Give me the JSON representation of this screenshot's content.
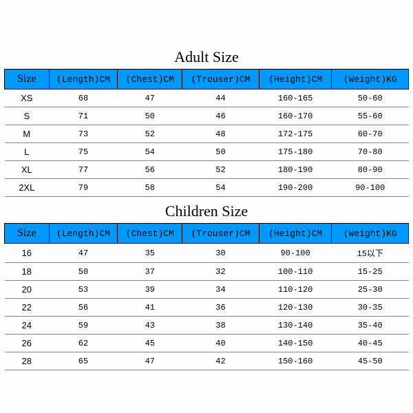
{
  "header_bg": "#0099ff",
  "adult": {
    "title": "Adult Size",
    "columns": [
      "Size",
      "(Length)CM",
      "(Chest)CM",
      "(Trouser)CM",
      "(Height)CM",
      "(Weight)KG"
    ],
    "rows": [
      [
        "XS",
        "68",
        "47",
        "44",
        "160-165",
        "50-60"
      ],
      [
        "S",
        "71",
        "50",
        "46",
        "160-170",
        "55-60"
      ],
      [
        "M",
        "73",
        "52",
        "48",
        "172-175",
        "60-70"
      ],
      [
        "L",
        "75",
        "54",
        "50",
        "175-180",
        "70-80"
      ],
      [
        "XL",
        "77",
        "56",
        "52",
        "180-190",
        "80-90"
      ],
      [
        "2XL",
        "79",
        "58",
        "54",
        "190-200",
        "90-100"
      ]
    ]
  },
  "children": {
    "title": "Children Size",
    "columns": [
      "Size",
      "(Length)CM",
      "(Chest)CM",
      "(Trouser)CM",
      "(Height)CM",
      "(Weight)KG"
    ],
    "rows": [
      [
        "16",
        "47",
        "35",
        "30",
        "90-100",
        "15以下"
      ],
      [
        "18",
        "50",
        "37",
        "32",
        "100-110",
        "15-25"
      ],
      [
        "20",
        "53",
        "39",
        "34",
        "110-120",
        "25-30"
      ],
      [
        "22",
        "56",
        "41",
        "36",
        "120-130",
        "30-35"
      ],
      [
        "24",
        "59",
        "43",
        "38",
        "130-140",
        "35-40"
      ],
      [
        "26",
        "62",
        "45",
        "40",
        "140-150",
        "40-45"
      ],
      [
        "28",
        "65",
        "47",
        "42",
        "150-160",
        "45-50"
      ]
    ]
  }
}
